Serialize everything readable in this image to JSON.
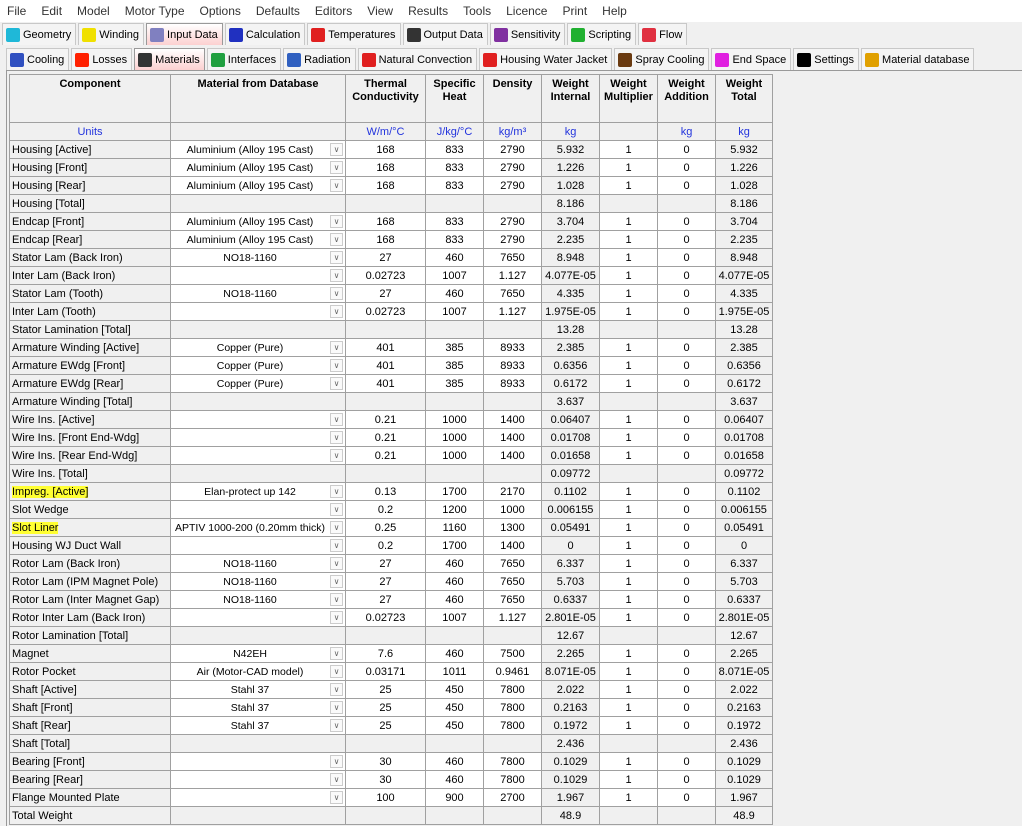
{
  "menu": [
    "File",
    "Edit",
    "Model",
    "Motor Type",
    "Options",
    "Defaults",
    "Editors",
    "View",
    "Results",
    "Tools",
    "Licence",
    "Print",
    "Help"
  ],
  "tabs_main": [
    {
      "label": "Geometry",
      "icon": "geometry-icon",
      "color": "#1fb8d8"
    },
    {
      "label": "Winding",
      "icon": "winding-icon",
      "color": "#f0e000"
    },
    {
      "label": "Input Data",
      "icon": "input-data-icon",
      "color": "#8080c0",
      "active": true
    },
    {
      "label": "Calculation",
      "icon": "calculation-icon",
      "color": "#2030c0"
    },
    {
      "label": "Temperatures",
      "icon": "thermometer-icon",
      "color": "#e02020"
    },
    {
      "label": "Output Data",
      "icon": "output-data-icon",
      "color": "#333333"
    },
    {
      "label": "Sensitivity",
      "icon": "sensitivity-icon",
      "color": "#8030a0"
    },
    {
      "label": "Scripting",
      "icon": "scripting-icon",
      "color": "#20b030"
    },
    {
      "label": "Flow",
      "icon": "flow-icon",
      "color": "#e03040"
    }
  ],
  "tabs_sub": [
    {
      "label": "Cooling",
      "icon": "snowflake-icon",
      "color": "#3050c0"
    },
    {
      "label": "Losses",
      "icon": "losses-icon",
      "color": "#ff2000"
    },
    {
      "label": "Materials",
      "icon": "weight-icon",
      "color": "#333333",
      "active": true
    },
    {
      "label": "Interfaces",
      "icon": "interfaces-icon",
      "color": "#20a040"
    },
    {
      "label": "Radiation",
      "icon": "radiation-icon",
      "color": "#3060c0"
    },
    {
      "label": "Natural Convection",
      "icon": "natural-convection-icon",
      "color": "#e02020"
    },
    {
      "label": "Housing Water Jacket",
      "icon": "water-jacket-icon",
      "color": "#e02020"
    },
    {
      "label": "Spray Cooling",
      "icon": "spray-cooling-icon",
      "color": "#6a3a10"
    },
    {
      "label": "End Space",
      "icon": "end-space-icon",
      "color": "#e020e0"
    },
    {
      "label": "Settings",
      "icon": "settings-icon",
      "color": "#000000"
    },
    {
      "label": "Material database",
      "icon": "material-database-icon",
      "color": "#e0a000"
    }
  ],
  "table": {
    "headers": [
      "Component",
      "Material from Database",
      "Thermal Conductivity",
      "Specific Heat",
      "Density",
      "Weight Internal",
      "Weight Multiplier",
      "Weight Addition",
      "Weight Total"
    ],
    "units": [
      "Units",
      "",
      "W/m/°C",
      "J/kg/°C",
      "kg/m³",
      "kg",
      "",
      "kg",
      "kg"
    ],
    "highlight_color": "#ffff33",
    "rows": [
      [
        "Housing [Active]",
        "Aluminium (Alloy 195 Cast)",
        "168",
        "833",
        "2790",
        "5.932",
        "1",
        "0",
        "5.932"
      ],
      [
        "Housing [Front]",
        "Aluminium (Alloy 195 Cast)",
        "168",
        "833",
        "2790",
        "1.226",
        "1",
        "0",
        "1.226"
      ],
      [
        "Housing [Rear]",
        "Aluminium (Alloy 195 Cast)",
        "168",
        "833",
        "2790",
        "1.028",
        "1",
        "0",
        "1.028"
      ],
      [
        "Housing [Total]",
        null,
        "",
        "",
        "",
        "8.186",
        "",
        "",
        "8.186"
      ],
      [
        "Endcap [Front]",
        "Aluminium (Alloy 195 Cast)",
        "168",
        "833",
        "2790",
        "3.704",
        "1",
        "0",
        "3.704"
      ],
      [
        "Endcap [Rear]",
        "Aluminium (Alloy 195 Cast)",
        "168",
        "833",
        "2790",
        "2.235",
        "1",
        "0",
        "2.235"
      ],
      [
        "Stator Lam (Back Iron)",
        "NO18-1160",
        "27",
        "460",
        "7650",
        "8.948",
        "1",
        "0",
        "8.948"
      ],
      [
        "Inter Lam (Back Iron)",
        "",
        "0.02723",
        "1007",
        "1.127",
        "4.077E-05",
        "1",
        "0",
        "4.077E-05"
      ],
      [
        "Stator Lam (Tooth)",
        "NO18-1160",
        "27",
        "460",
        "7650",
        "4.335",
        "1",
        "0",
        "4.335"
      ],
      [
        "Inter Lam (Tooth)",
        "",
        "0.02723",
        "1007",
        "1.127",
        "1.975E-05",
        "1",
        "0",
        "1.975E-05"
      ],
      [
        "Stator Lamination [Total]",
        null,
        "",
        "",
        "",
        "13.28",
        "",
        "",
        "13.28"
      ],
      [
        "Armature Winding [Active]",
        "Copper (Pure)",
        "401",
        "385",
        "8933",
        "2.385",
        "1",
        "0",
        "2.385"
      ],
      [
        "Armature EWdg [Front]",
        "Copper (Pure)",
        "401",
        "385",
        "8933",
        "0.6356",
        "1",
        "0",
        "0.6356"
      ],
      [
        "Armature EWdg [Rear]",
        "Copper (Pure)",
        "401",
        "385",
        "8933",
        "0.6172",
        "1",
        "0",
        "0.6172"
      ],
      [
        "Armature Winding [Total]",
        null,
        "",
        "",
        "",
        "3.637",
        "",
        "",
        "3.637"
      ],
      [
        "Wire Ins. [Active]",
        "",
        "0.21",
        "1000",
        "1400",
        "0.06407",
        "1",
        "0",
        "0.06407"
      ],
      [
        "Wire Ins. [Front End-Wdg]",
        "",
        "0.21",
        "1000",
        "1400",
        "0.01708",
        "1",
        "0",
        "0.01708"
      ],
      [
        "Wire Ins. [Rear End-Wdg]",
        "",
        "0.21",
        "1000",
        "1400",
        "0.01658",
        "1",
        "0",
        "0.01658"
      ],
      [
        "Wire Ins. [Total]",
        null,
        "",
        "",
        "",
        "0.09772",
        "",
        "",
        "0.09772"
      ],
      [
        "Impreg. [Active]",
        "Elan-protect up 142",
        "0.13",
        "1700",
        "2170",
        "0.1102",
        "1",
        "0",
        "0.1102",
        "hl"
      ],
      [
        "Slot Wedge",
        "",
        "0.2",
        "1200",
        "1000",
        "0.006155",
        "1",
        "0",
        "0.006155"
      ],
      [
        "Slot Liner",
        "APTIV 1000-200 (0.20mm thick)",
        "0.25",
        "1160",
        "1300",
        "0.05491",
        "1",
        "0",
        "0.05491",
        "hl"
      ],
      [
        "Housing WJ Duct Wall",
        "",
        "0.2",
        "1700",
        "1400",
        "0",
        "1",
        "0",
        "0"
      ],
      [
        "Rotor Lam (Back Iron)",
        "NO18-1160",
        "27",
        "460",
        "7650",
        "6.337",
        "1",
        "0",
        "6.337"
      ],
      [
        "Rotor Lam (IPM Magnet Pole)",
        "NO18-1160",
        "27",
        "460",
        "7650",
        "5.703",
        "1",
        "0",
        "5.703"
      ],
      [
        "Rotor Lam (Inter Magnet Gap)",
        "NO18-1160",
        "27",
        "460",
        "7650",
        "0.6337",
        "1",
        "0",
        "0.6337"
      ],
      [
        "Rotor Inter Lam (Back Iron)",
        "",
        "0.02723",
        "1007",
        "1.127",
        "2.801E-05",
        "1",
        "0",
        "2.801E-05"
      ],
      [
        "Rotor Lamination [Total]",
        null,
        "",
        "",
        "",
        "12.67",
        "",
        "",
        "12.67"
      ],
      [
        "Magnet",
        "N42EH",
        "7.6",
        "460",
        "7500",
        "2.265",
        "1",
        "0",
        "2.265"
      ],
      [
        "Rotor Pocket",
        "Air (Motor-CAD model)",
        "0.03171",
        "1011",
        "0.9461",
        "8.071E-05",
        "1",
        "0",
        "8.071E-05"
      ],
      [
        "Shaft [Active]",
        "Stahl 37",
        "25",
        "450",
        "7800",
        "2.022",
        "1",
        "0",
        "2.022"
      ],
      [
        "Shaft [Front]",
        "Stahl 37",
        "25",
        "450",
        "7800",
        "0.2163",
        "1",
        "0",
        "0.2163"
      ],
      [
        "Shaft [Rear]",
        "Stahl 37",
        "25",
        "450",
        "7800",
        "0.1972",
        "1",
        "0",
        "0.1972"
      ],
      [
        "Shaft [Total]",
        null,
        "",
        "",
        "",
        "2.436",
        "",
        "",
        "2.436"
      ],
      [
        "Bearing [Front]",
        "",
        "30",
        "460",
        "7800",
        "0.1029",
        "1",
        "0",
        "0.1029"
      ],
      [
        "Bearing [Rear]",
        "",
        "30",
        "460",
        "7800",
        "0.1029",
        "1",
        "0",
        "0.1029"
      ],
      [
        "Flange Mounted Plate",
        "",
        "100",
        "900",
        "2700",
        "1.967",
        "1",
        "0",
        "1.967"
      ],
      [
        "Total Weight",
        null,
        "",
        "",
        "",
        "48.9",
        "",
        "",
        "48.9"
      ]
    ]
  }
}
